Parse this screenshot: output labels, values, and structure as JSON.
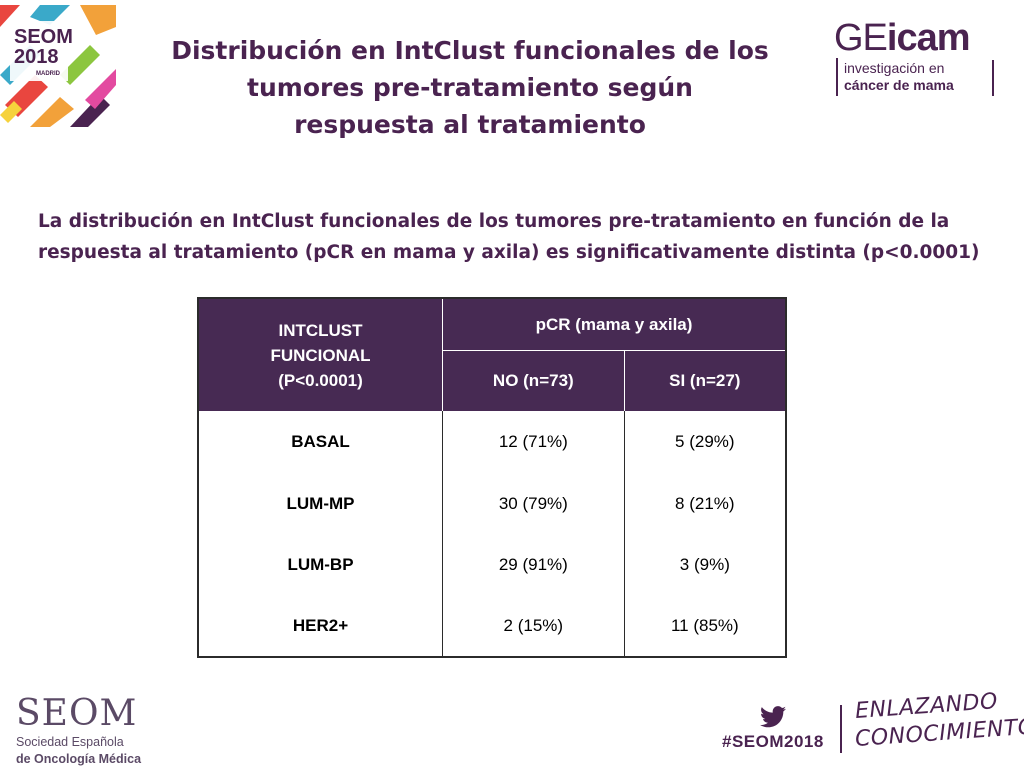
{
  "logos": {
    "seom2018": {
      "line1": "SEOM",
      "line2": "2018",
      "line3": "MADRID"
    },
    "geicam": {
      "word_ge": "GE",
      "word_icam": "icam",
      "line1": "investigación en",
      "line2": "cáncer de mama"
    }
  },
  "title": {
    "line1": "Distribución en IntClust funcionales de los",
    "line2": "tumores pre-tratamiento según",
    "line3": "respuesta al tratamiento"
  },
  "subtitle": {
    "line1": "La distribución en IntClust funcionales de los tumores pre-tratamiento en función de la",
    "line2": "respuesta al tratamiento (pCR en mama y axila) es significativamente distinta (p<0.0001)"
  },
  "table": {
    "row_header": {
      "line1": "INTCLUST",
      "line2": "FUNCIONAL",
      "line3": "(P<0.0001)"
    },
    "group_header": "pCR (mama y axila)",
    "col_no": "NO (n=73)",
    "col_si": "SI (n=27)",
    "rows": [
      {
        "category": "BASAL",
        "no": "12 (71%)",
        "si": "5 (29%)"
      },
      {
        "category": "LUM-MP",
        "no": "30 (79%)",
        "si": "8 (21%)"
      },
      {
        "category": "LUM-BP",
        "no": "29 (91%)",
        "si": "3 (9%)"
      },
      {
        "category": "HER2+",
        "no": "2 (15%)",
        "si": "11 (85%)"
      }
    ]
  },
  "footer": {
    "seom": {
      "name": "SEOM",
      "line1": "Sociedad  Española",
      "line2": "de Oncología Médica"
    },
    "hashtag": "#SEOM2018",
    "slogan": {
      "line1": "ENLAZANDO",
      "line2": "CONOCIMIENTO"
    }
  },
  "colors": {
    "brand_purple": "#4a2350",
    "table_header": "#472a53"
  }
}
